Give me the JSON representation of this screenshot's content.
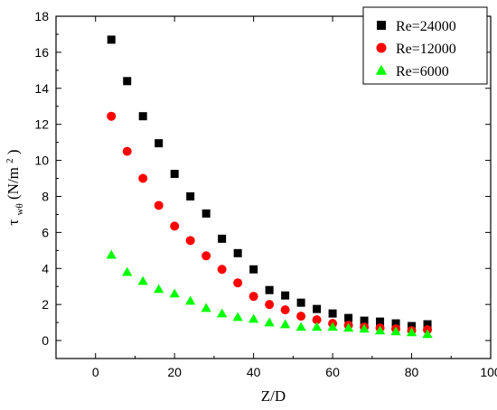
{
  "chart_data": {
    "type": "scatter",
    "xlabel": "Z/D",
    "ylabel": {
      "main": "τ",
      "subscript": "wθ",
      "unit_prefix": "(N/m",
      "unit_superscript": "2",
      "unit_suffix": ")"
    },
    "xlim": [
      -10,
      100
    ],
    "ylim": [
      -1,
      18
    ],
    "xticks": [
      0,
      20,
      40,
      60,
      80,
      100
    ],
    "yticks": [
      0,
      2,
      4,
      6,
      8,
      10,
      12,
      14,
      16,
      18
    ],
    "grid": false,
    "legend_position": "top-right",
    "series": [
      {
        "name": "Re=24000",
        "marker": "square",
        "color": "#000000",
        "x": [
          4,
          8,
          12,
          16,
          20,
          24,
          28,
          32,
          36,
          40,
          44,
          48,
          52,
          56,
          60,
          64,
          68,
          72,
          76,
          80,
          84
        ],
        "y": [
          16.7,
          14.4,
          12.45,
          10.95,
          9.25,
          8.0,
          7.05,
          5.65,
          4.85,
          3.95,
          2.8,
          2.5,
          2.1,
          1.75,
          1.5,
          1.25,
          1.1,
          1.05,
          0.95,
          0.8,
          0.9
        ]
      },
      {
        "name": "Re=12000",
        "marker": "circle",
        "color": "#ff0000",
        "x": [
          4,
          8,
          12,
          16,
          20,
          24,
          28,
          32,
          36,
          40,
          44,
          48,
          52,
          56,
          60,
          64,
          68,
          72,
          76,
          80,
          84
        ],
        "y": [
          12.45,
          10.5,
          9.0,
          7.5,
          6.35,
          5.55,
          4.7,
          3.95,
          3.2,
          2.45,
          2.0,
          1.7,
          1.35,
          1.15,
          0.95,
          0.85,
          0.75,
          0.7,
          0.65,
          0.55,
          0.6
        ]
      },
      {
        "name": "Re=6000",
        "marker": "triangle",
        "color": "#00ff00",
        "x": [
          4,
          8,
          12,
          16,
          20,
          24,
          28,
          32,
          36,
          40,
          44,
          48,
          52,
          56,
          60,
          64,
          68,
          72,
          76,
          80,
          84
        ],
        "y": [
          4.75,
          3.8,
          3.3,
          2.85,
          2.6,
          2.2,
          1.8,
          1.5,
          1.3,
          1.2,
          1.0,
          0.9,
          0.75,
          0.75,
          0.75,
          0.7,
          0.65,
          0.55,
          0.5,
          0.45,
          0.35
        ]
      }
    ]
  }
}
